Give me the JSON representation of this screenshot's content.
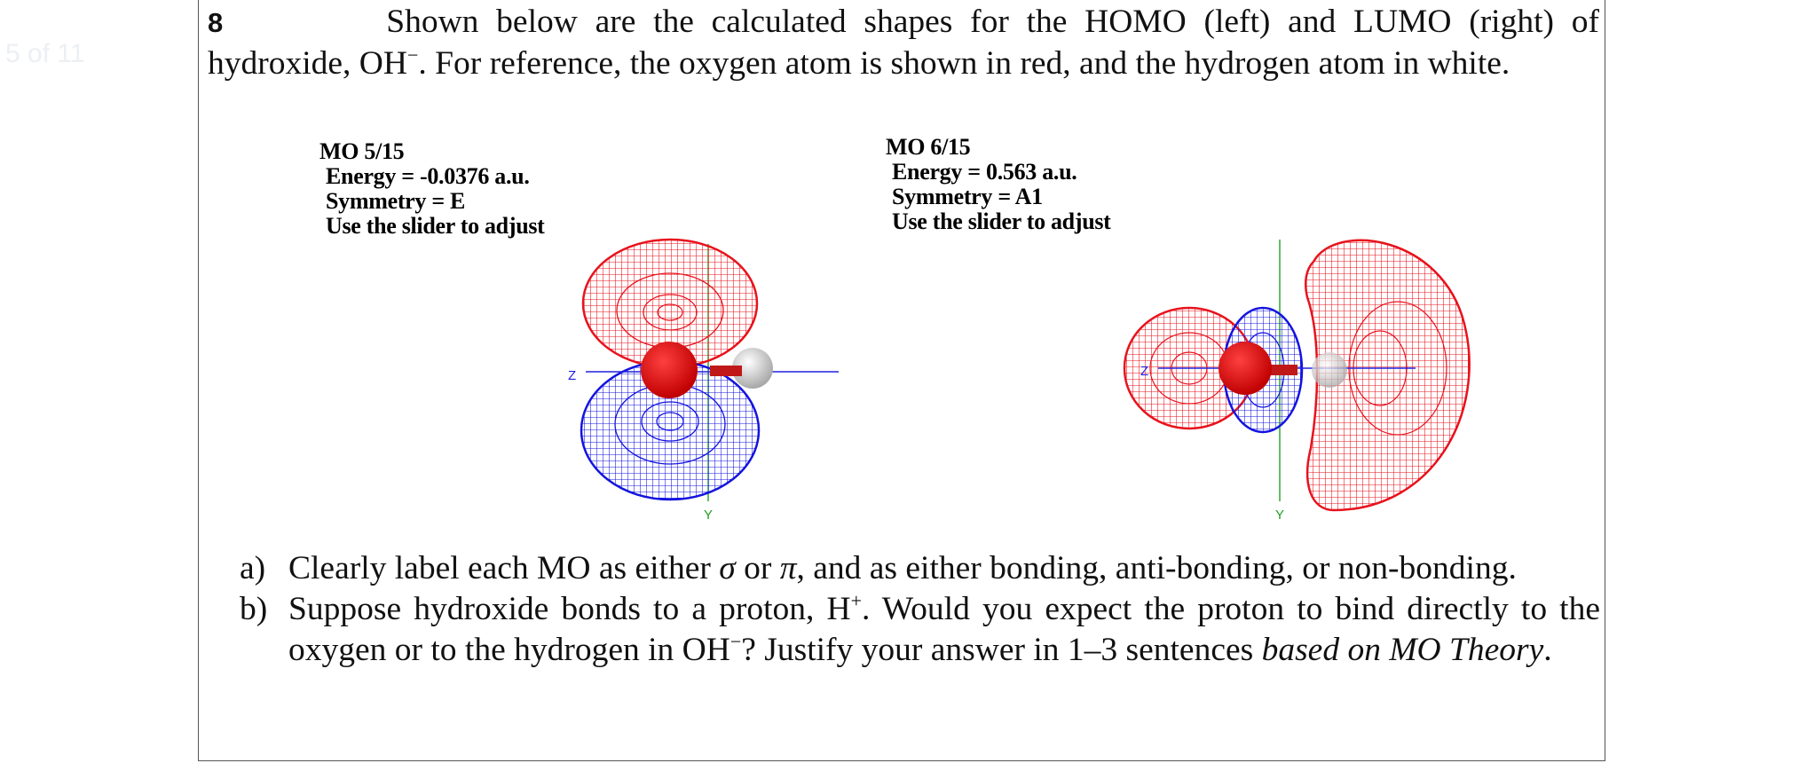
{
  "page_counter": "5 of 11",
  "question": {
    "number": "8",
    "text_before_sup": "Shown below are the calculated shapes for the HOMO (left) and LUMO (right) of hydroxide, OH",
    "sup_minus": "−",
    "text_after_sup": ". For reference, the oxygen atom is shown in red, and the hydrogen atom in white."
  },
  "homo": {
    "title": "MO 5/15",
    "energy": "Energy = -0.0376 a.u.",
    "symmetry": "Symmetry = E",
    "hint": "Use the slider to adjust",
    "axis_z": "Z",
    "axis_y": "Y"
  },
  "lumo": {
    "title": "MO 6/15",
    "energy": "Energy = 0.563 a.u.",
    "symmetry": "Symmetry = A1",
    "hint": "Use the slider to adjust",
    "axis_z": "Z",
    "axis_y": "Y"
  },
  "parts": [
    {
      "label": "a)",
      "text1": "Clearly label each MO as either ",
      "sigma": "σ",
      "text2": " or ",
      "pi": "π",
      "text3": ", and as either bonding, anti-bonding, or non-bonding."
    },
    {
      "label": "b)",
      "text1": "Suppose hydroxide bonds to a proton, H",
      "sup_plus": "+",
      "text2": ". Would you expect the proton to bind directly to the oxygen or to the hydrogen in OH",
      "sup_minus": "−",
      "text3": "? Justify your answer in 1–3 sentences ",
      "italic": "based on MO Theory",
      "text4": "."
    }
  ],
  "colors": {
    "positive_lobe": "#e8121c",
    "negative_lobe": "#1414e0",
    "oxygen": "#e01010",
    "hydrogen": "#d8d8d8",
    "axis_green": "#22a022",
    "axis_blue": "#2020e0"
  }
}
